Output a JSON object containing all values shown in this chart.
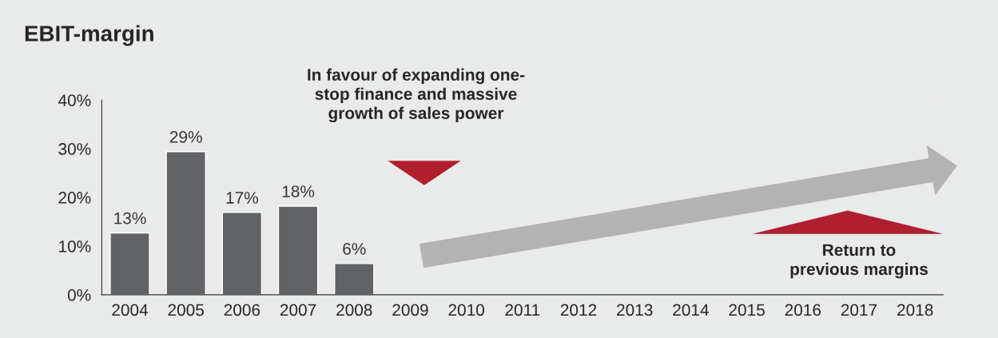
{
  "chart_data": {
    "type": "bar",
    "title": "EBIT-margin",
    "categories": [
      "2004",
      "2005",
      "2006",
      "2007",
      "2008",
      "2009",
      "2010",
      "2011",
      "2012",
      "2013",
      "2014",
      "2015",
      "2016",
      "2017",
      "2018"
    ],
    "values": [
      12.7,
      29.4,
      16.9,
      18.2,
      6.4,
      null,
      null,
      null,
      null,
      null,
      null,
      null,
      null,
      null,
      null
    ],
    "value_labels": [
      "13%",
      "29%",
      "17%",
      "18%",
      "6%",
      null,
      null,
      null,
      null,
      null,
      null,
      null,
      null,
      null,
      null
    ],
    "color": "#616366",
    "ylim": [
      0,
      40
    ],
    "yticks": [
      {
        "value": 0,
        "label": "0%"
      },
      {
        "value": 10,
        "label": "10%"
      },
      {
        "value": 20,
        "label": "20%"
      },
      {
        "value": 30,
        "label": "30%"
      },
      {
        "value": 40,
        "label": "40%"
      }
    ],
    "grid": false,
    "legend": false,
    "annotations": [
      "In favour of expanding one-\nstop finance and massive\ngrowth of sales power",
      "Return to\nprevious margins"
    ]
  }
}
